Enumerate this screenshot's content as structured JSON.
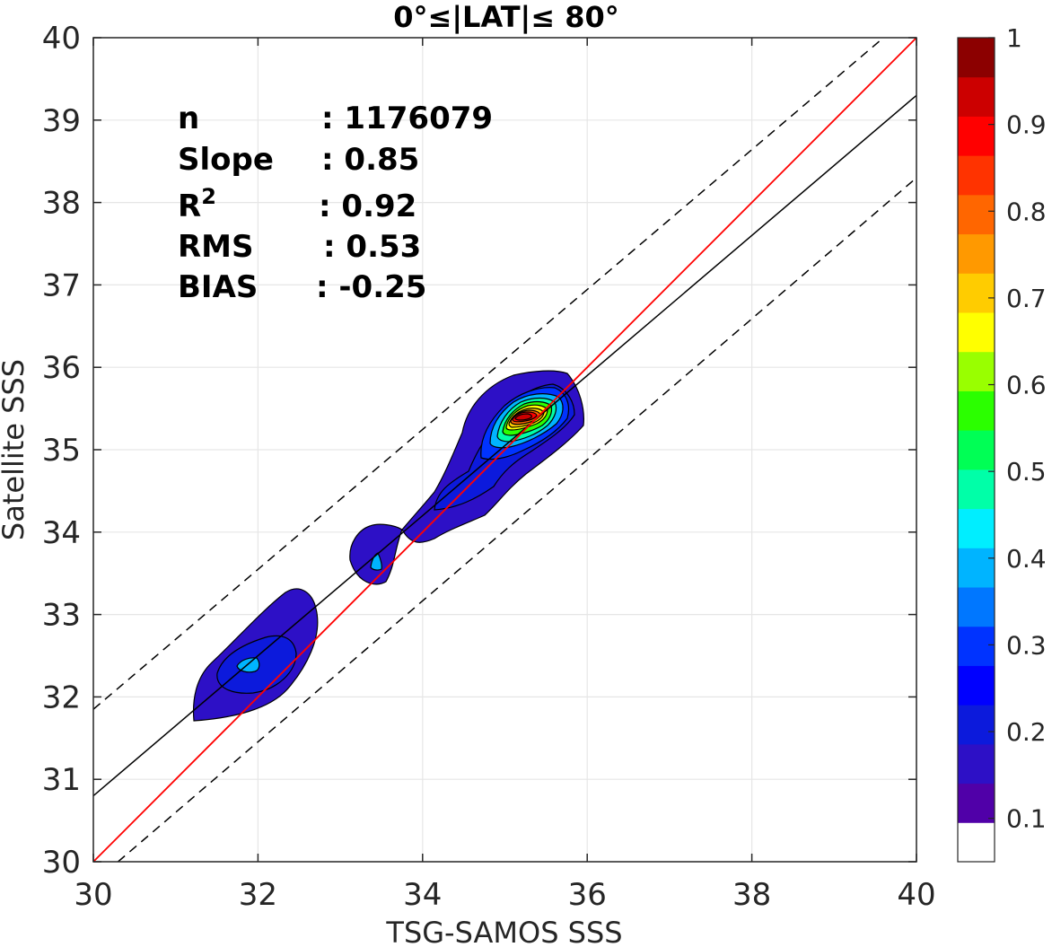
{
  "chart_data": {
    "type": "contour",
    "title": "0°≤|LAT|≤ 80°",
    "xlabel": "TSG-SAMOS SSS",
    "ylabel": "Satellite SSS",
    "xlim": [
      30,
      40
    ],
    "ylim": [
      30,
      40
    ],
    "x_ticks": [
      "30",
      "32",
      "34",
      "36",
      "38",
      "40"
    ],
    "y_ticks": [
      "30",
      "31",
      "32",
      "33",
      "34",
      "35",
      "36",
      "37",
      "38",
      "39",
      "40"
    ],
    "grid": true,
    "stats": [
      {
        "label": "n",
        "value": ": 1176079"
      },
      {
        "label": "Slope",
        "value": ": 0.85"
      },
      {
        "label": "R",
        "sup": "2",
        "value": ": 0.92"
      },
      {
        "label": "RMS",
        "value": ": 0.53"
      },
      {
        "label": "BIAS",
        "value": ": -0.25"
      }
    ],
    "one_to_one_line": {
      "color": "#ff0000",
      "points": [
        [
          30,
          30
        ],
        [
          40,
          40
        ]
      ]
    },
    "fit_line": {
      "color": "#000000",
      "slope": 0.85,
      "points": [
        [
          30,
          30.8
        ],
        [
          40,
          39.3
        ]
      ]
    },
    "bound_lines": [
      {
        "style": "dashed",
        "points": [
          [
            30,
            31.85
          ],
          [
            39.6,
            40
          ]
        ]
      },
      {
        "style": "dashed",
        "points": [
          [
            30.3,
            30
          ],
          [
            40,
            38.3
          ]
        ]
      }
    ],
    "density_peak": {
      "x": 35.3,
      "y": 35.4,
      "value": 0.95
    },
    "colorbar": {
      "ticks": [
        "0.1",
        "0.2",
        "0.3",
        "0.4",
        "0.5",
        "0.6",
        "0.7",
        "0.8",
        "0.9",
        "1"
      ],
      "colors": [
        "#ffffff",
        "#5000a8",
        "#2d10c6",
        "#0c1adc",
        "#0000ff",
        "#0033ff",
        "#0077ff",
        "#00b4ff",
        "#00eeff",
        "#00ffa8",
        "#00ff55",
        "#2bff00",
        "#99ff00",
        "#ffff00",
        "#ffcc00",
        "#ff9900",
        "#ff6600",
        "#ff3300",
        "#ff0000",
        "#cc0000",
        "#8c0000"
      ]
    }
  }
}
